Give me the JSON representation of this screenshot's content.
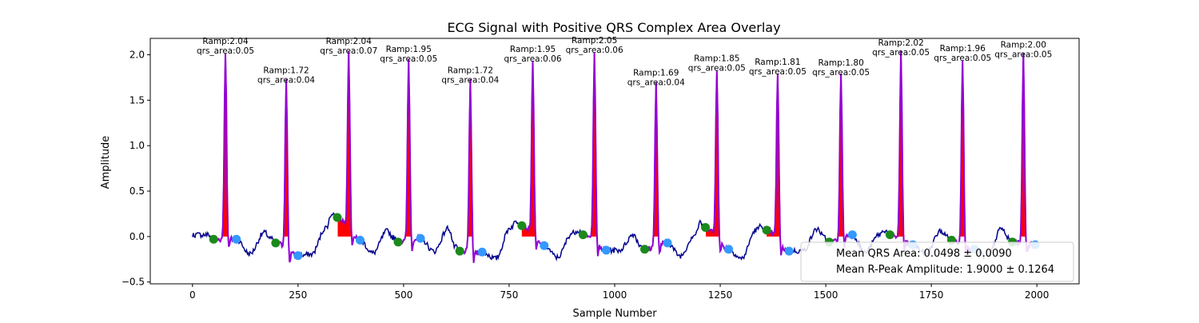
{
  "chart_data": {
    "type": "line",
    "title": "ECG Signal with Positive QRS Complex Area Overlay",
    "xlabel": "Sample Number",
    "ylabel": "Amplitude",
    "xlim": [
      -100,
      2100
    ],
    "ylim": [
      -0.52,
      2.18
    ],
    "xticks": [
      0,
      250,
      500,
      750,
      1000,
      1250,
      1500,
      1750,
      2000
    ],
    "yticks": [
      -0.5,
      0.0,
      0.5,
      1.0,
      1.5,
      2.0
    ],
    "xtick_labels": [
      "0",
      "250",
      "500",
      "750",
      "1000",
      "1250",
      "1500",
      "1750",
      "2000"
    ],
    "ytick_labels": [
      "−0.5",
      "0.0",
      "0.5",
      "1.0",
      "1.5",
      "2.0"
    ],
    "colors": {
      "signal": "#00008b",
      "qrs_segment": "#9400d3",
      "qrs_area_fill": "#ff0000",
      "onset_marker": "#1a8a1a",
      "offset_marker": "#3399ff"
    },
    "beats": [
      {
        "peak_x": 78,
        "ramp": 2.04,
        "onset": [
          50,
          -0.03
        ],
        "offset": [
          104,
          -0.03
        ],
        "label_ramp": "Ramp:2.04",
        "label_area": "qrs_area:0.05"
      },
      {
        "peak_x": 222,
        "ramp": 1.72,
        "onset": [
          197,
          -0.07
        ],
        "offset": [
          250,
          -0.21
        ],
        "label_ramp": "Ramp:1.72",
        "label_area": "qrs_area:0.04"
      },
      {
        "peak_x": 370,
        "ramp": 2.04,
        "onset": [
          343,
          0.21
        ],
        "offset": [
          397,
          -0.04
        ],
        "label_ramp": "Ramp:2.04",
        "label_area": "qrs_area:0.07"
      },
      {
        "peak_x": 512,
        "ramp": 1.95,
        "onset": [
          487,
          -0.06
        ],
        "offset": [
          540,
          -0.02
        ],
        "label_ramp": "Ramp:1.95",
        "label_area": "qrs_area:0.05"
      },
      {
        "peak_x": 658,
        "ramp": 1.72,
        "onset": [
          633,
          -0.16
        ],
        "offset": [
          686,
          -0.17
        ],
        "label_ramp": "Ramp:1.72",
        "label_area": "qrs_area:0.04"
      },
      {
        "peak_x": 806,
        "ramp": 1.95,
        "onset": [
          780,
          0.12
        ],
        "offset": [
          833,
          -0.1
        ],
        "label_ramp": "Ramp:1.95",
        "label_area": "qrs_area:0.06"
      },
      {
        "peak_x": 952,
        "ramp": 2.05,
        "onset": [
          925,
          0.02
        ],
        "offset": [
          980,
          -0.15
        ],
        "label_ramp": "Ramp:2.05",
        "label_area": "qrs_area:0.06"
      },
      {
        "peak_x": 1098,
        "ramp": 1.69,
        "onset": [
          1071,
          -0.14
        ],
        "offset": [
          1125,
          -0.07
        ],
        "label_ramp": "Ramp:1.69",
        "label_area": "qrs_area:0.04"
      },
      {
        "peak_x": 1242,
        "ramp": 1.85,
        "onset": [
          1215,
          0.1
        ],
        "offset": [
          1270,
          -0.14
        ],
        "label_ramp": "Ramp:1.85",
        "label_area": "qrs_area:0.05"
      },
      {
        "peak_x": 1386,
        "ramp": 1.81,
        "onset": [
          1360,
          0.07
        ],
        "offset": [
          1413,
          -0.16
        ],
        "label_ramp": "Ramp:1.81",
        "label_area": "qrs_area:0.05"
      },
      {
        "peak_x": 1536,
        "ramp": 1.8,
        "onset": [
          1508,
          -0.06
        ],
        "offset": [
          1563,
          0.02
        ],
        "label_ramp": "Ramp:1.80",
        "label_area": "qrs_area:0.05"
      },
      {
        "peak_x": 1678,
        "ramp": 2.02,
        "onset": [
          1652,
          0.02
        ],
        "offset": [
          1706,
          -0.09
        ],
        "label_ramp": "Ramp:2.02",
        "label_area": "qrs_area:0.05"
      },
      {
        "peak_x": 1824,
        "ramp": 1.96,
        "onset": [
          1798,
          -0.04
        ],
        "offset": [
          1852,
          -0.14
        ],
        "label_ramp": "Ramp:1.96",
        "label_area": "qrs_area:0.05"
      },
      {
        "peak_x": 1968,
        "ramp": 2.0,
        "onset": [
          1942,
          -0.06
        ],
        "offset": [
          1996,
          -0.09
        ],
        "label_ramp": "Ramp:2.00",
        "label_area": "qrs_area:0.05"
      }
    ],
    "legend": {
      "position": "lower-right",
      "entries": [
        "Mean QRS Area: 0.0498 ± 0.0090",
        "Mean R-Peak Amplitude: 1.9000 ± 0.1264"
      ]
    }
  }
}
